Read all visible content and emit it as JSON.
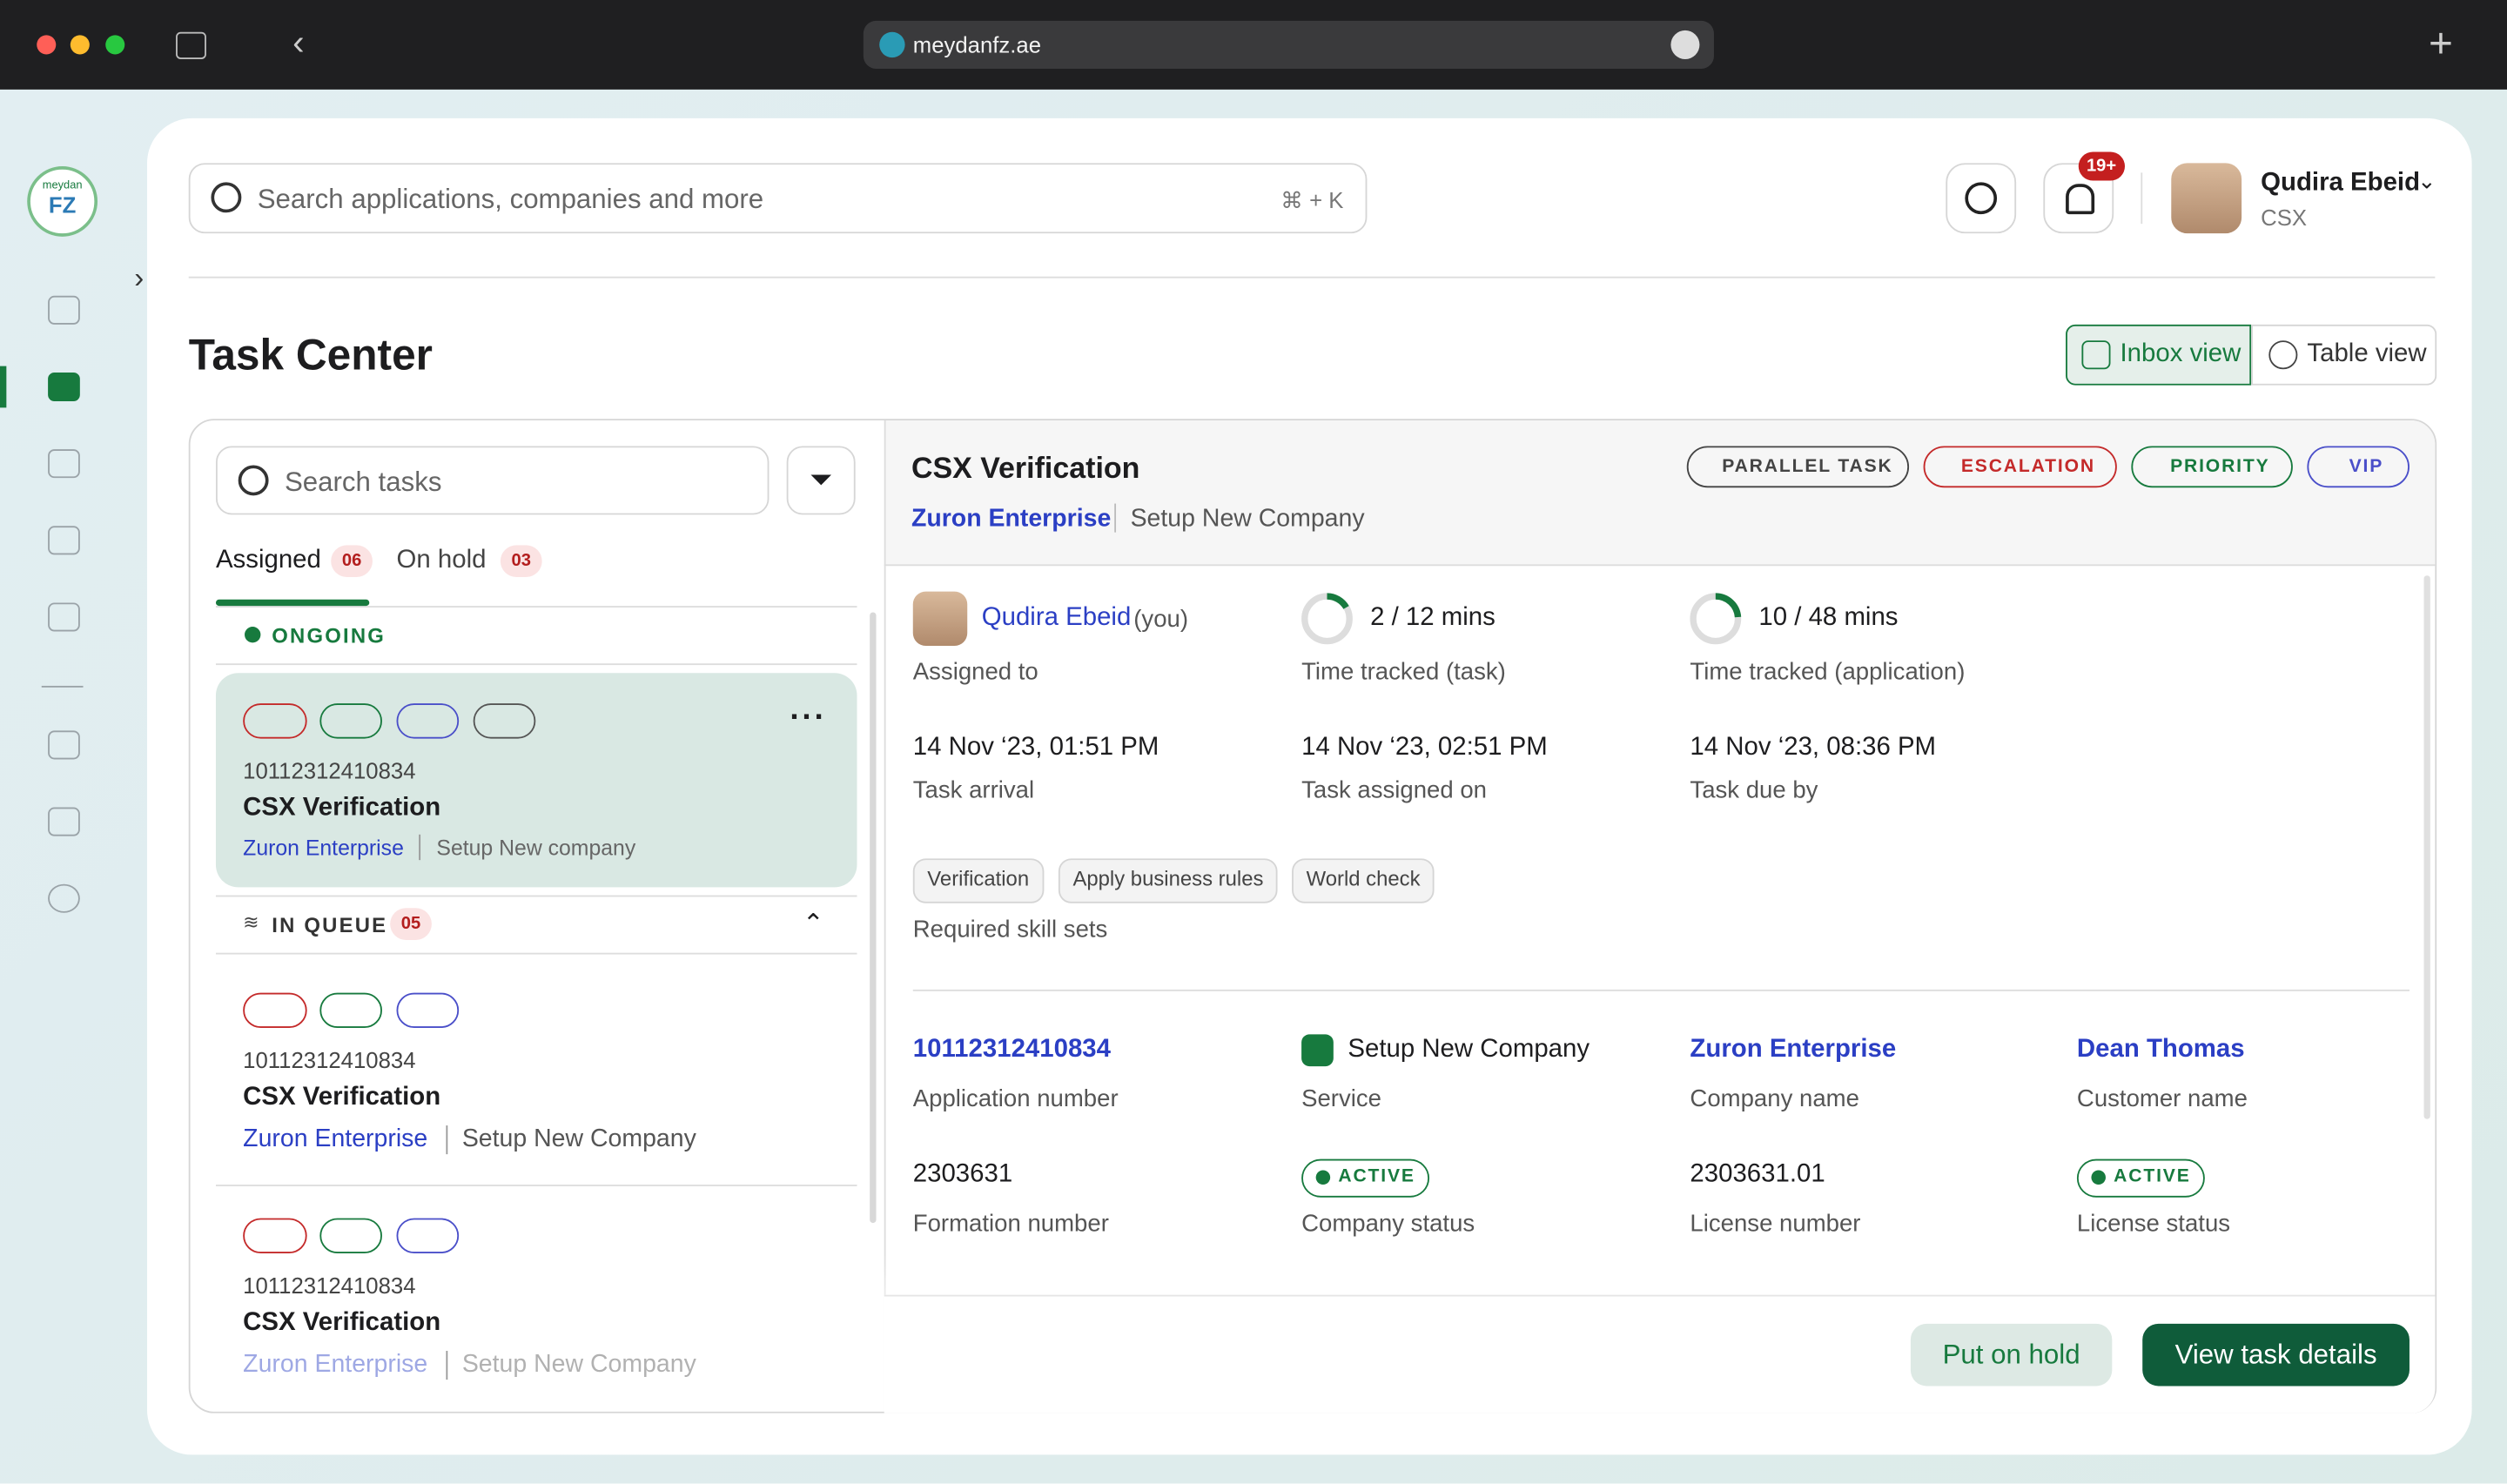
{
  "browser": {
    "url": "meydanfz.ae"
  },
  "sidebar": {
    "logo_top": "meydan",
    "logo_main": "FZ"
  },
  "header": {
    "search_placeholder": "Search applications, companies and more",
    "shortcut": "⌘ + K",
    "notification_count": "19+",
    "user_name": "Qudira Ebeid",
    "user_role": "CSX"
  },
  "page": {
    "title": "Task Center",
    "views": [
      "Inbox view",
      "Table view"
    ]
  },
  "task_list": {
    "search_placeholder": "Search tasks",
    "tabs": [
      {
        "label": "Assigned",
        "count": "06"
      },
      {
        "label": "On hold",
        "count": "03"
      }
    ],
    "ongoing_label": "ONGOING",
    "ongoing": {
      "id": "10112312410834",
      "title": "CSX Verification",
      "company": "Zuron Enterprise",
      "service": "Setup New company"
    },
    "queue_label": "IN QUEUE",
    "queue_count": "05",
    "queue": [
      {
        "id": "10112312410834",
        "title": "CSX Verification",
        "company": "Zuron Enterprise",
        "service": "Setup New Company"
      },
      {
        "id": "10112312410834",
        "title": "CSX Verification",
        "company": "Zuron Enterprise",
        "service": "Setup New Company"
      }
    ]
  },
  "detail": {
    "title": "CSX Verification",
    "company": "Zuron Enterprise",
    "service": "Setup New Company",
    "tags": [
      "PARALLEL TASK",
      "ESCALATION",
      "PRIORITY",
      "VIP"
    ],
    "assigned": {
      "name": "Qudira Ebeid",
      "suffix": "(you)",
      "label": "Assigned to"
    },
    "time_task": {
      "value": "2 / 12 mins",
      "label": "Time tracked (task)"
    },
    "time_app": {
      "value": "10 / 48 mins",
      "label": "Time tracked (application)"
    },
    "dates": [
      {
        "value": "14 Nov ‘23, 01:51 PM",
        "label": "Task arrival"
      },
      {
        "value": "14 Nov ‘23, 02:51 PM",
        "label": "Task assigned on"
      },
      {
        "value": "14 Nov ‘23, 08:36 PM",
        "label": "Task due by"
      }
    ],
    "skills": [
      "Verification",
      "Apply business rules",
      "World check"
    ],
    "skills_label": "Required skill sets",
    "info": [
      {
        "value": "10112312410834",
        "label": "Application number"
      },
      {
        "value": "Setup New Company",
        "label": "Service"
      },
      {
        "value": "Zuron Enterprise",
        "label": "Company name"
      },
      {
        "value": "Dean Thomas",
        "label": "Customer name"
      },
      {
        "value": "2303631",
        "label": "Formation number"
      },
      {
        "value": "ACTIVE",
        "label": "Company status"
      },
      {
        "value": "2303631.01",
        "label": "License number"
      },
      {
        "value": "ACTIVE",
        "label": "License status"
      }
    ],
    "actions": [
      "Put on hold",
      "View task details"
    ]
  }
}
